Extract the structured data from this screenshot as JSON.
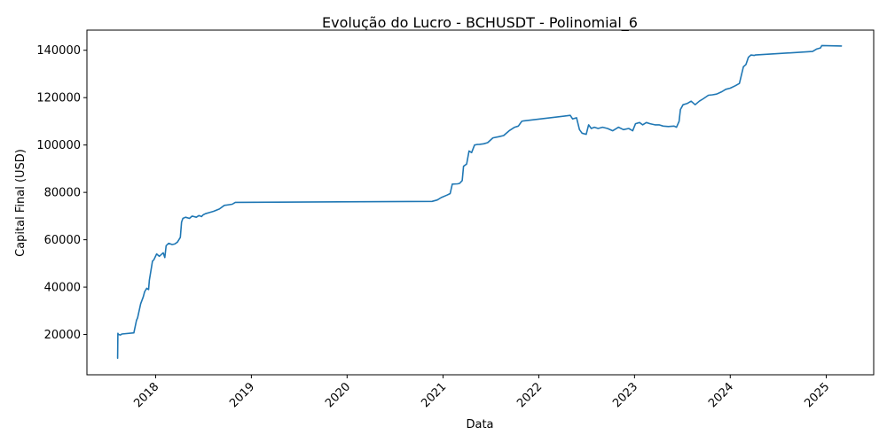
{
  "chart_data": {
    "type": "line",
    "title": "Evolução do Lucro - BCHUSDT - Polinomial_6",
    "xlabel": "Data",
    "ylabel": "Capital Final (USD)",
    "x_tick_labels": [
      "2018",
      "2019",
      "2020",
      "2021",
      "2022",
      "2023",
      "2024",
      "2025"
    ],
    "y_tick_labels": [
      "20000",
      "40000",
      "60000",
      "80000",
      "100000",
      "120000",
      "140000"
    ],
    "y_ticks": [
      20000,
      40000,
      60000,
      80000,
      100000,
      120000,
      140000
    ],
    "ylim": [
      3000,
      148500
    ],
    "xlim": [
      "2017-04-14",
      "2025-07-01"
    ],
    "grid": false,
    "line_color": "#1f77b4",
    "series": [
      {
        "x": [
          "2017-08-09",
          "2017-08-10",
          "2017-08-12",
          "2017-08-20",
          "2017-08-25",
          "2017-10-10",
          "2017-10-20",
          "2017-10-24",
          "2017-11-05",
          "2017-11-15",
          "2017-11-20",
          "2017-11-28",
          "2017-12-05",
          "2017-12-08",
          "2017-12-20",
          "2017-12-25",
          "2018-01-05",
          "2018-01-15",
          "2018-01-30",
          "2018-02-05",
          "2018-02-10",
          "2018-02-20",
          "2018-03-05",
          "2018-03-15",
          "2018-03-25",
          "2018-04-05",
          "2018-04-10",
          "2018-04-15",
          "2018-04-25",
          "2018-05-10",
          "2018-05-20",
          "2018-06-05",
          "2018-06-15",
          "2018-06-25",
          "2018-07-01",
          "2018-07-10",
          "2018-07-25",
          "2018-08-10",
          "2018-09-01",
          "2018-09-20",
          "2018-10-20",
          "2018-11-01",
          "2020-11-20",
          "2020-12-10",
          "2020-12-25",
          "2021-01-15",
          "2021-01-28",
          "2021-02-05",
          "2021-02-25",
          "2021-03-05",
          "2021-03-15",
          "2021-03-20",
          "2021-04-01",
          "2021-04-10",
          "2021-04-20",
          "2021-05-01",
          "2021-05-10",
          "2021-05-20",
          "2021-06-05",
          "2021-06-20",
          "2021-07-10",
          "2021-08-01",
          "2021-08-20",
          "2021-09-10",
          "2021-10-01",
          "2021-10-15",
          "2021-10-28",
          "2021-11-05",
          "2022-05-01",
          "2022-05-10",
          "2022-05-25",
          "2022-06-05",
          "2022-06-15",
          "2022-07-01",
          "2022-07-10",
          "2022-07-20",
          "2022-08-01",
          "2022-08-15",
          "2022-09-01",
          "2022-09-20",
          "2022-10-10",
          "2022-11-01",
          "2022-11-20",
          "2022-12-10",
          "2022-12-25",
          "2023-01-05",
          "2023-01-20",
          "2023-02-01",
          "2023-02-15",
          "2023-03-01",
          "2023-03-20",
          "2023-04-05",
          "2023-04-20",
          "2023-05-10",
          "2023-06-01",
          "2023-06-10",
          "2023-06-20",
          "2023-06-25",
          "2023-07-05",
          "2023-07-20",
          "2023-08-05",
          "2023-08-20",
          "2023-09-05",
          "2023-09-20",
          "2023-10-10",
          "2023-10-25",
          "2023-11-10",
          "2023-11-30",
          "2023-12-15",
          "2024-01-01",
          "2024-01-20",
          "2024-02-05",
          "2024-02-20",
          "2024-03-01",
          "2024-03-10",
          "2024-03-20",
          "2024-04-01",
          "2024-04-05",
          "2024-11-10",
          "2024-11-25",
          "2024-12-10",
          "2024-12-15",
          "2025-02-28"
        ],
        "y": [
          10000,
          20500,
          20000,
          19800,
          20200,
          20700,
          26000,
          27000,
          33000,
          36000,
          38000,
          39500,
          39000,
          43000,
          51000,
          51500,
          54000,
          53000,
          54500,
          52500,
          57500,
          58500,
          58000,
          58200,
          59000,
          61000,
          67500,
          69000,
          69500,
          69000,
          70000,
          69500,
          70200,
          69800,
          70500,
          71000,
          71500,
          72000,
          73000,
          74500,
          75000,
          75800,
          76200,
          76800,
          77800,
          78800,
          79500,
          83500,
          83600,
          83800,
          85000,
          91000,
          92000,
          97500,
          96800,
          100000,
          100200,
          100300,
          100500,
          101000,
          103000,
          103500,
          104000,
          106000,
          107500,
          108000,
          110000,
          110200,
          112500,
          111000,
          111500,
          106500,
          105000,
          104500,
          108500,
          107000,
          107500,
          107000,
          107500,
          107000,
          106000,
          107500,
          106500,
          107000,
          106000,
          109000,
          109500,
          108500,
          109500,
          109000,
          108500,
          108500,
          108000,
          107800,
          108000,
          107500,
          110000,
          115000,
          117000,
          117500,
          118500,
          117000,
          118500,
          119500,
          121000,
          121200,
          121500,
          122500,
          123500,
          124000,
          125000,
          126000,
          133000,
          134000,
          137000,
          138000,
          137800,
          138000,
          139500,
          140500,
          141000,
          142000,
          141800
        ]
      }
    ]
  }
}
